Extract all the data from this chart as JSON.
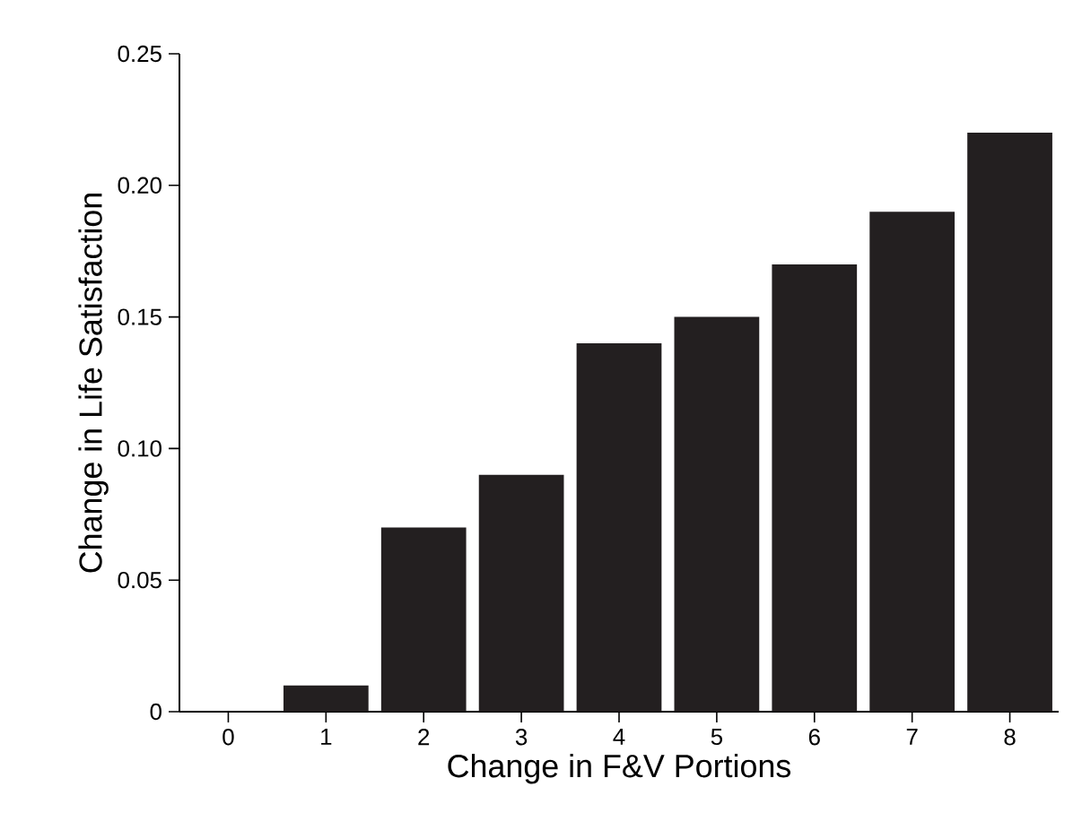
{
  "chart_data": {
    "type": "bar",
    "xlabel": "Change in F&V Portions",
    "ylabel": "Change in Life Satisfaction",
    "categories": [
      "0",
      "1",
      "2",
      "3",
      "4",
      "5",
      "6",
      "7",
      "8"
    ],
    "values": [
      0,
      0.01,
      0.07,
      0.09,
      0.14,
      0.15,
      0.17,
      0.19,
      0.22
    ],
    "color": "#231f20",
    "ylim": [
      0,
      0.25
    ],
    "yticks": [
      0,
      0.05,
      {
        "value": 0.1,
        "label": "0.10"
      },
      0.15,
      {
        "value": 0.2,
        "label": "0.20"
      },
      0.25
    ]
  }
}
